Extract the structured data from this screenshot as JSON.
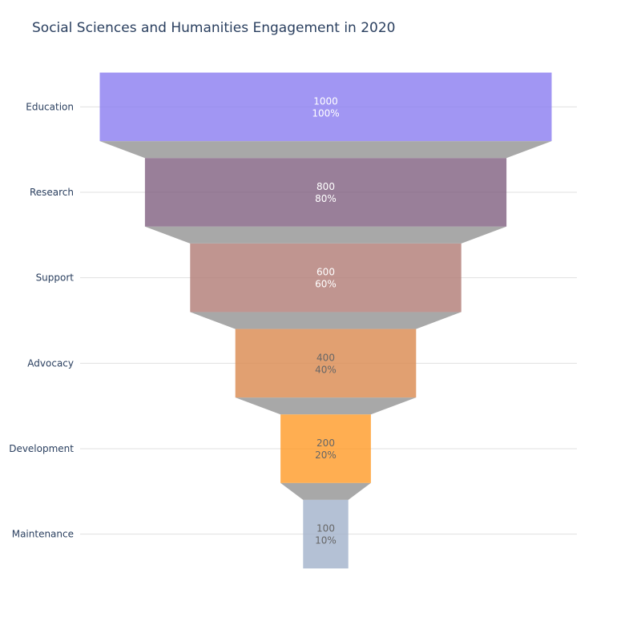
{
  "chart_data": {
    "type": "funnel",
    "title": "Social Sciences and Humanities Engagement in 2020",
    "categories": [
      "Education",
      "Research",
      "Support",
      "Advocacy",
      "Development",
      "Maintenance"
    ],
    "values": [
      1000,
      800,
      600,
      400,
      200,
      100
    ],
    "percent_labels": [
      "100%",
      "80%",
      "60%",
      "40%",
      "20%",
      "10%"
    ],
    "colors": [
      "#8a7cf0",
      "#7f5f80",
      "#b07a74",
      "#d9884d",
      "#ff9a26",
      "#a1b2ca"
    ],
    "label_colors": [
      "#ffffff",
      "#ffffff",
      "#ffffff",
      "#666666",
      "#666666",
      "#666666"
    ],
    "connector_color": "#999999",
    "grid": true
  }
}
